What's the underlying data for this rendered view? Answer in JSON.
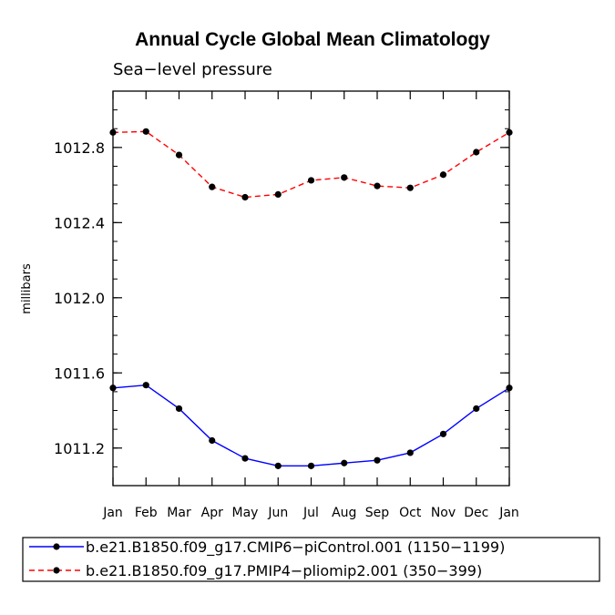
{
  "chart_data": {
    "type": "line",
    "title": "Annual Cycle Global Mean Climatology",
    "subtitle": "Sea−level pressure",
    "xlabel": "",
    "ylabel": "millibars",
    "categories": [
      "Jan",
      "Feb",
      "Mar",
      "Apr",
      "May",
      "Jun",
      "Jul",
      "Aug",
      "Sep",
      "Oct",
      "Nov",
      "Dec",
      "Jan"
    ],
    "ylim": [
      1011.0,
      1013.1
    ],
    "yticks": [
      1011.2,
      1011.6,
      1012.0,
      1012.4,
      1012.8
    ],
    "ytick_labels": [
      "1011.2",
      "1011.6",
      "1012.0",
      "1012.4",
      "1012.8"
    ],
    "grid": false,
    "legend_position": "bottom",
    "series": [
      {
        "name": "b.e21.B1850.f09_g17.CMIP6−piControl.001 (1150−1199)",
        "color": "#0000ff",
        "style": "solid",
        "values": [
          1011.52,
          1011.535,
          1011.41,
          1011.24,
          1011.145,
          1011.105,
          1011.105,
          1011.12,
          1011.135,
          1011.175,
          1011.275,
          1011.41,
          1011.52
        ]
      },
      {
        "name": "b.e21.B1850.f09_g17.PMIP4−pliomip2.001 (350−399)",
        "color": "#ff0000",
        "style": "dashed",
        "values": [
          1012.88,
          1012.885,
          1012.76,
          1012.59,
          1012.535,
          1012.55,
          1012.625,
          1012.64,
          1012.595,
          1012.585,
          1012.655,
          1012.775,
          1012.88
        ]
      }
    ]
  }
}
